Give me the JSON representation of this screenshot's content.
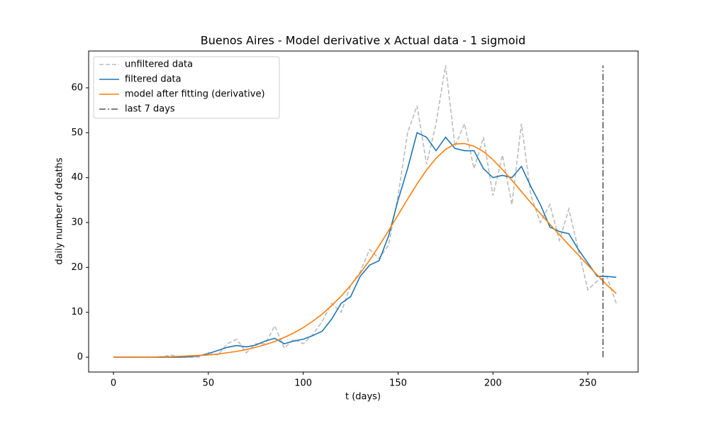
{
  "chart_data": {
    "type": "line",
    "title": "Buenos Aires - Model derivative x Actual data - 1 sigmoid",
    "x_label": "t (days)",
    "y_label": "daily number of deaths",
    "xlim": [
      -13.1,
      276.5
    ],
    "ylim": [
      -3.3,
      68.2
    ],
    "xticks": [
      0,
      50,
      100,
      150,
      200,
      250
    ],
    "yticks": [
      0,
      10,
      20,
      30,
      40,
      50,
      60
    ],
    "legend": "upper left",
    "x": [
      0,
      5,
      10,
      15,
      20,
      25,
      30,
      35,
      40,
      45,
      50,
      55,
      60,
      65,
      70,
      75,
      80,
      85,
      90,
      95,
      100,
      105,
      110,
      115,
      120,
      125,
      130,
      135,
      140,
      145,
      150,
      155,
      160,
      165,
      170,
      175,
      180,
      185,
      190,
      195,
      200,
      205,
      210,
      215,
      220,
      225,
      230,
      235,
      240,
      245,
      250,
      255,
      260,
      265
    ],
    "series": [
      {
        "name": "unfiltered data",
        "color": "#bbbbbb",
        "style": "dashed",
        "values": [
          0,
          0,
          0,
          0,
          0,
          0,
          0.5,
          0,
          0,
          0,
          1,
          0.5,
          3,
          4,
          1,
          3,
          3,
          7,
          2,
          4,
          3,
          5,
          8,
          12,
          10,
          16,
          19,
          24,
          22,
          25,
          36,
          50,
          56,
          43,
          52,
          65,
          47,
          52,
          42,
          49,
          36,
          45,
          34,
          52,
          36,
          30,
          34,
          26,
          33,
          24,
          15,
          17,
          18,
          12
        ]
      },
      {
        "name": "filtered data",
        "color": "#1f77b4",
        "style": "solid",
        "values": [
          0,
          0,
          0,
          0,
          0,
          0,
          0,
          0,
          0.1,
          0.3,
          0.8,
          1.5,
          2.2,
          2.6,
          2.3,
          2.7,
          3.6,
          4.2,
          3.0,
          3.6,
          4.0,
          4.8,
          5.8,
          8.5,
          12.0,
          13.5,
          18.0,
          20.5,
          21.5,
          27,
          35,
          42,
          50,
          49,
          46,
          49,
          46.5,
          46,
          46,
          42,
          40,
          40.5,
          40,
          42.5,
          38,
          34,
          29,
          28,
          27.5,
          24,
          21,
          18,
          18,
          17.8
        ]
      },
      {
        "name": "model after fitting (derivative)",
        "color": "#ff7f0e",
        "style": "solid",
        "values": [
          0,
          0,
          0,
          0,
          0,
          0.1,
          0.1,
          0.2,
          0.3,
          0.4,
          0.5,
          0.7,
          1.0,
          1.3,
          1.7,
          2.2,
          2.8,
          3.5,
          4.4,
          5.4,
          6.6,
          8.0,
          9.6,
          11.5,
          13.6,
          16.0,
          18.7,
          21.6,
          24.8,
          28.2,
          31.7,
          35.2,
          38.6,
          41.7,
          44.3,
          46.3,
          47.5,
          47.6,
          47.0,
          45.8,
          44.0,
          41.8,
          39.4,
          36.9,
          34.4,
          32.0,
          29.6,
          27.3,
          25.0,
          22.8,
          20.5,
          18.3,
          16.1,
          14.2
        ]
      },
      {
        "name": "last 7 days",
        "color": "#555555",
        "style": "dashdot",
        "x": [
          258,
          258
        ],
        "values": [
          0,
          65
        ]
      }
    ]
  }
}
